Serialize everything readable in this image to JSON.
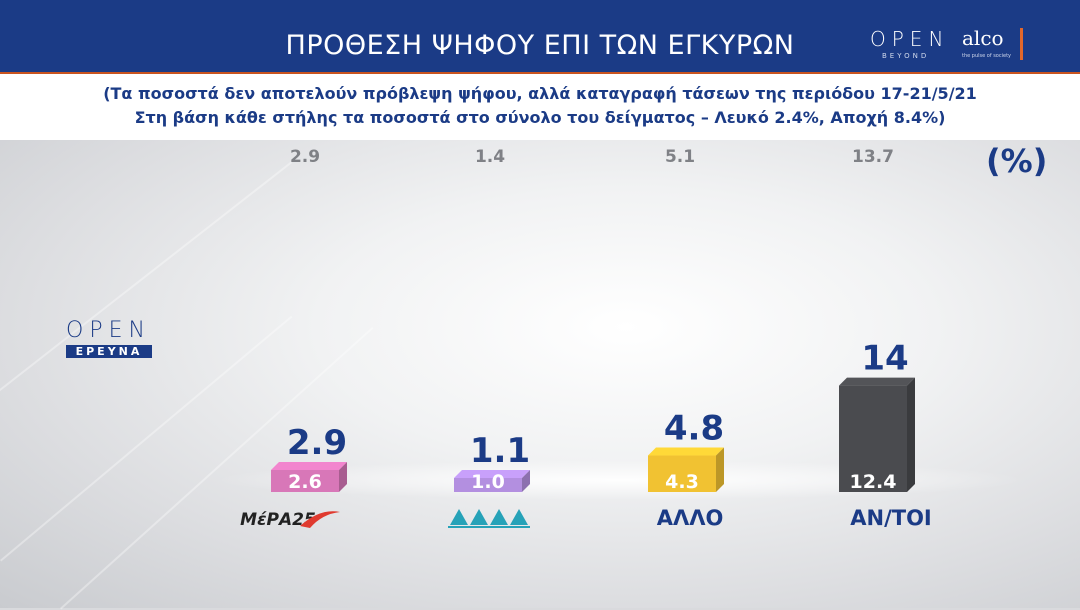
{
  "header": {
    "title": "ΠΡΟΘΕΣΗ ΨΗΦΟΥ ΕΠΙ ΤΩΝ ΕΓΚΥΡΩΝ",
    "brand_open": "OPEN",
    "brand_beyond": "BEYOND",
    "brand_alco": "alco",
    "brand_alco_tag": "the pulse of society"
  },
  "subtitle": {
    "line1": "(Τα ποσοστά δεν αποτελούν πρόβλεψη ψήφου, αλλά καταγραφή τάσεων της περιόδου 17-21/5/21",
    "line2": "Στη βάση κάθε στήλης τα ποσοστά στο σύνολο του δείγματος – Λευκό 2.4%, Αποχή 8.4%)"
  },
  "unit_label": "(%)",
  "logo": {
    "open": "OPEN",
    "erevna": "ΕΡΕΥΝΑ"
  },
  "colors": {
    "header": "#1b3b86",
    "accent": "#e2672a",
    "text_blue": "#1b3b86"
  },
  "chart_data": {
    "type": "bar",
    "categories": [
      "ΜέΡΑ25",
      "ΛΑΕ",
      "ΑΛΛΟ",
      "ΑΝ/ΤΟΙ"
    ],
    "category_labels_printed": [
      "ΜέΡΑ25",
      "",
      "ΑΛΛΟ",
      "ΑΝ/ΤΟΙ"
    ],
    "category_icons": [
      "mera25-logo",
      "lae-logo",
      "",
      ""
    ],
    "series": [
      {
        "name": "",
        "role": "valid-vote",
        "values": [
          2.9,
          1.1,
          4.8,
          14
        ]
      },
      {
        "name": "",
        "role": "total-sample",
        "values": [
          2.6,
          1.0,
          4.3,
          12.4
        ]
      },
      {
        "name": "",
        "role": "previous",
        "values": [
          2.9,
          1.4,
          5.1,
          13.7
        ]
      }
    ],
    "value_labels_valid": [
      "2.9",
      "1.1",
      "4.8",
      "14"
    ],
    "value_labels_sample": [
      "2.6",
      "1.0",
      "4.3",
      "12.4"
    ],
    "value_labels_previous": [
      "2.9",
      "1.4",
      "5.1",
      "13.7"
    ],
    "bar_colors": [
      "#d877b8",
      "#b38fe0",
      "#f1c232",
      "#4a4b4f"
    ],
    "ylim": [
      0,
      15
    ],
    "grid": false,
    "legend": "none"
  }
}
